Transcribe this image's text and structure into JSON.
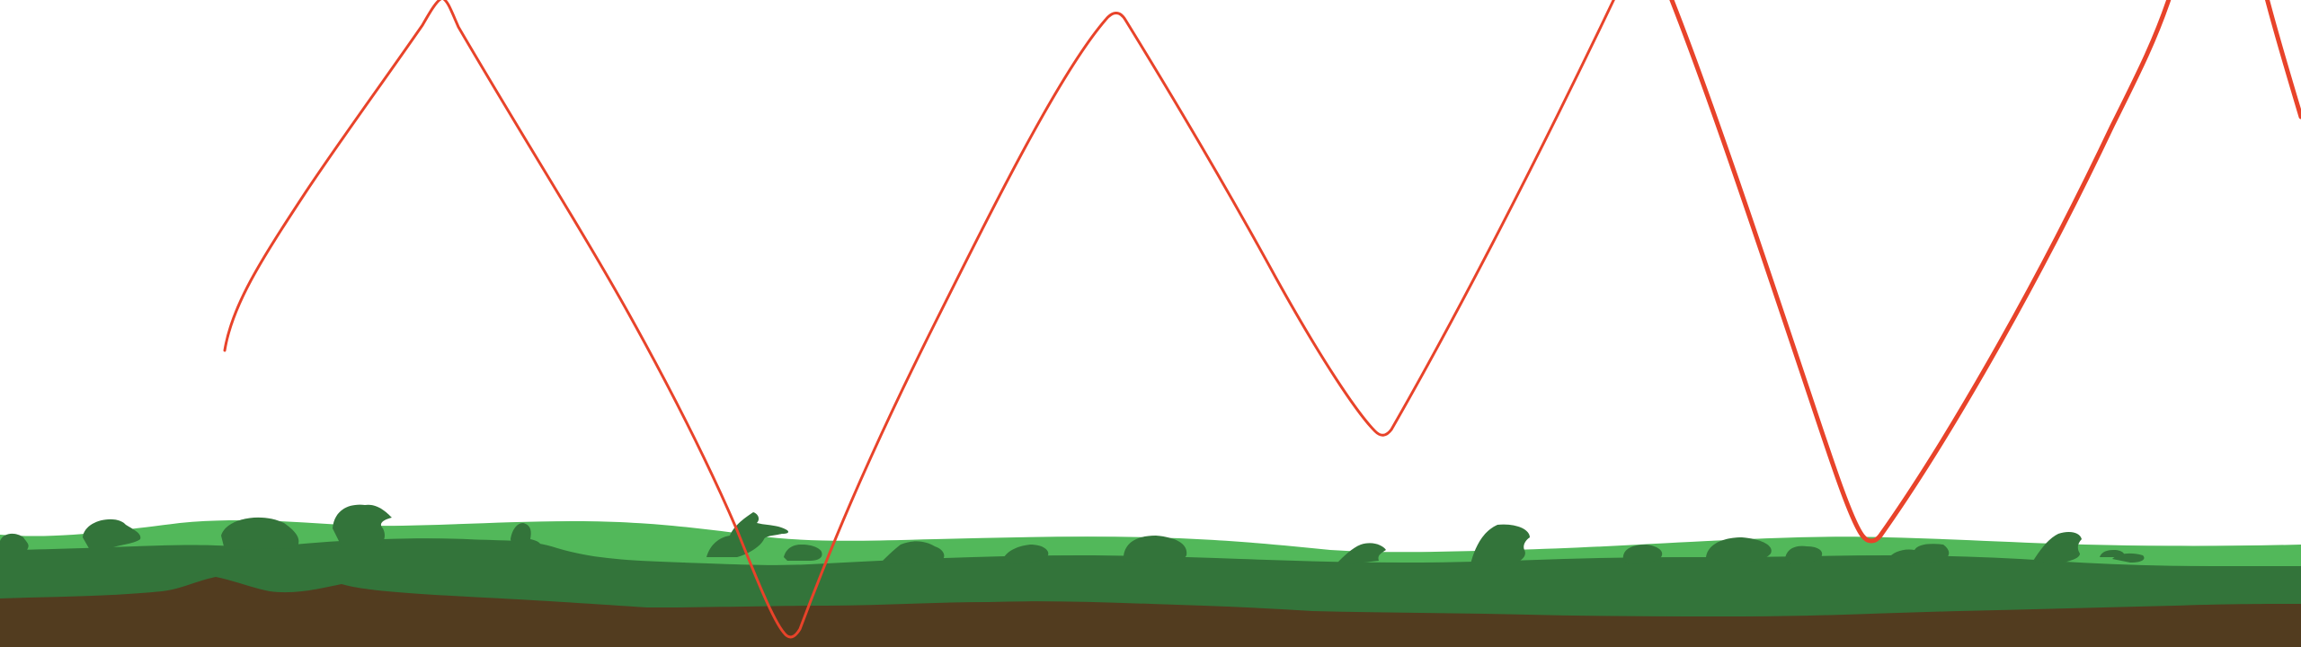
{
  "scene": {
    "colors": {
      "sky": "#ffffff",
      "light_grass": "#52b85a",
      "dark_grass": "#33743a",
      "soil": "#523c1f",
      "trail": "#e8432a"
    }
  }
}
